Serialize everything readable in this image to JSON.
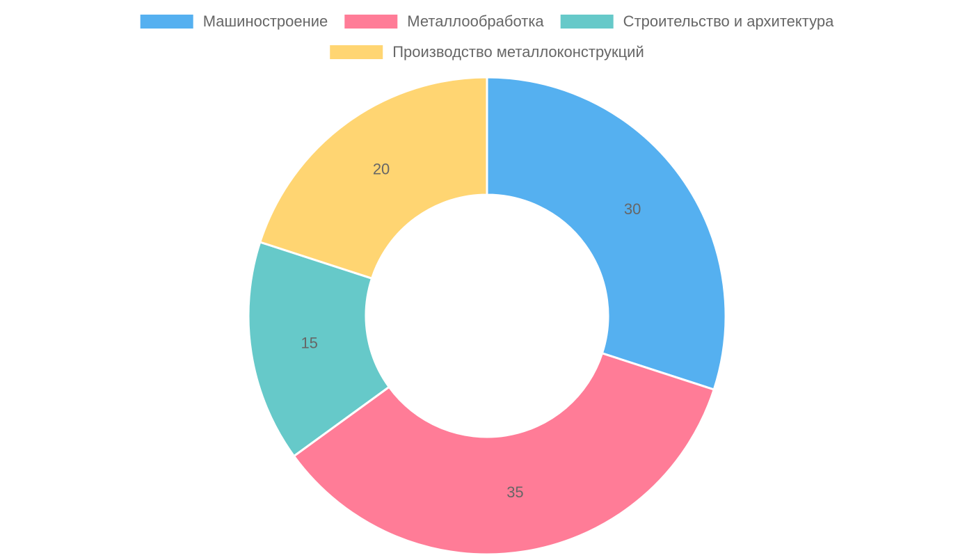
{
  "chart_data": {
    "type": "doughnut",
    "categories": [
      "Машиностроение",
      "Металлообработка",
      "Строительство и архитектура",
      "Производство металлоконструкций"
    ],
    "values": [
      30,
      35,
      15,
      20
    ],
    "colors": [
      "#55b0f0",
      "#ff7c97",
      "#66c9c9",
      "#ffd572"
    ],
    "legend": "top"
  }
}
